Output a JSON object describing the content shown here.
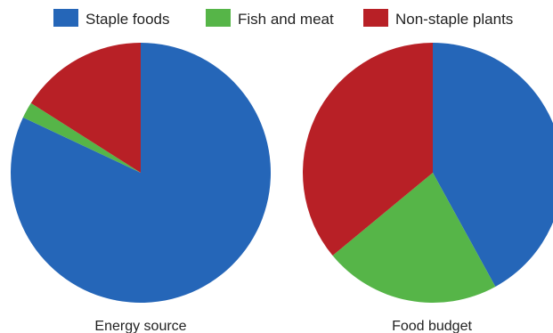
{
  "chart_data": [
    {
      "type": "pie",
      "title": "Energy source",
      "categories": [
        "Staple foods",
        "Fish and meat",
        "Non-staple plants"
      ],
      "values": [
        82,
        2,
        16
      ],
      "colors": [
        "#2566b8",
        "#56b548",
        "#b82026"
      ],
      "start_angle_deg": 0,
      "direction": "clockwise"
    },
    {
      "type": "pie",
      "title": "Food budget",
      "categories": [
        "Staple foods",
        "Fish and meat",
        "Non-staple plants"
      ],
      "values": [
        42,
        22,
        36
      ],
      "colors": [
        "#2566b8",
        "#56b548",
        "#b82026"
      ],
      "start_angle_deg": 0,
      "direction": "clockwise"
    }
  ],
  "legend": {
    "placement": "top",
    "items": [
      {
        "label": "Staple foods",
        "color": "#2566b8"
      },
      {
        "label": "Fish and meat",
        "color": "#56b548"
      },
      {
        "label": "Non-staple plants",
        "color": "#b82026"
      }
    ]
  }
}
